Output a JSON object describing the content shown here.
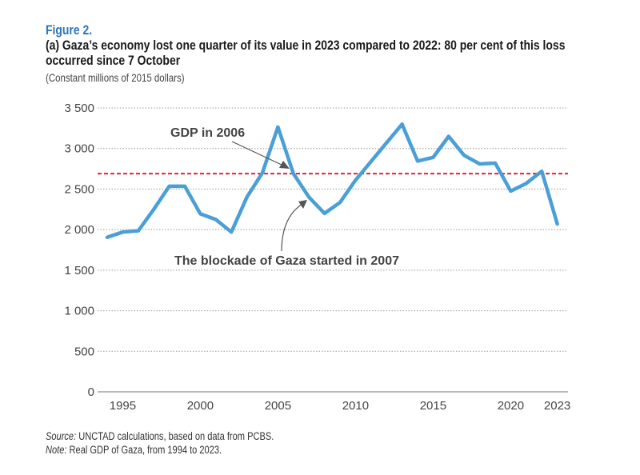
{
  "figure_label": "Figure 2.",
  "subtitle_line1": "(a) Gaza’s economy lost one quarter of its value in 2023 compared to 2022: 80 per cent of this loss",
  "subtitle_line2": "occurred since 7 October",
  "units": "(Constant millions of 2015 dollars)",
  "source_label": "Source:",
  "source_text": " UNCTAD calculations, based on data from PCBS.",
  "note_label": "Note:",
  "note_text": " Real GDP of Gaza, from 1994 to 2023.",
  "chart_data": {
    "type": "line",
    "title": "(a) Gaza’s economy lost one quarter of its value in 2023 compared to 2022: 80 per cent of this loss occurred since 7 October",
    "ylabel": "(Constant millions of 2015 dollars)",
    "xlabel": "",
    "ylim": [
      0,
      3500
    ],
    "xlim": [
      1994,
      2023
    ],
    "yticks": [
      0,
      500,
      1000,
      1500,
      2000,
      2500,
      3000,
      3500
    ],
    "ytick_labels": [
      "0",
      "500",
      "1 000",
      "1 500",
      "2 000",
      "2 500",
      "3 000",
      "3 500"
    ],
    "xticks": [
      1995,
      2000,
      2005,
      2010,
      2015,
      2020,
      2023
    ],
    "xtick_labels": [
      "1995",
      "2000",
      "2005",
      "2010",
      "2015",
      "2020",
      "2023"
    ],
    "grid": "horizontal dotted",
    "line_color": "#4a9fd6",
    "reference_color": "#e0223c",
    "x": [
      1994,
      1995,
      1996,
      1997,
      1998,
      1999,
      2000,
      2001,
      2002,
      2003,
      2004,
      2005,
      2006,
      2007,
      2008,
      2009,
      2010,
      2011,
      2012,
      2013,
      2014,
      2015,
      2016,
      2017,
      2018,
      2019,
      2020,
      2021,
      2022,
      2023
    ],
    "values": [
      1905,
      1970,
      1985,
      2250,
      2535,
      2535,
      2195,
      2125,
      1970,
      2400,
      2700,
      3265,
      2690,
      2400,
      2200,
      2335,
      2610,
      2840,
      3070,
      3300,
      2845,
      2890,
      3150,
      2915,
      2810,
      2820,
      2475,
      2570,
      2720,
      2070
    ],
    "reference_line": {
      "value": 2690,
      "style": "dashed"
    },
    "annotations": [
      {
        "text": "GDP in 2006",
        "points_to_year": 2006
      },
      {
        "text": "The blockade of Gaza started in 2007",
        "points_to_year": 2007
      }
    ]
  }
}
